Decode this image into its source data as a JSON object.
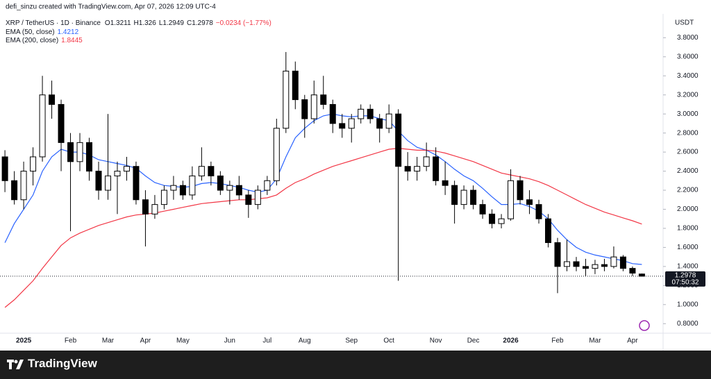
{
  "chart_data": {
    "type": "candlestick",
    "credit": "defi_sinzu created with TradingView.com, Apr 07, 2026 12:09 UTC-4",
    "title": "XRP / TetherUS · 1D · Binance",
    "ohlc_labels": [
      "O",
      "H",
      "L",
      "C"
    ],
    "change_label": "−0.0234 (−1.77%)",
    "axis_unit": "USDT",
    "countdown": "07:50:32",
    "footer": "TradingView",
    "up_color": "#ffffff",
    "down_color": "#000000",
    "wick_color": "#000000",
    "categories": [
      null,
      null,
      "2025",
      null,
      null,
      null,
      null,
      "Feb",
      null,
      null,
      null,
      "Mar",
      null,
      null,
      null,
      "Apr",
      null,
      null,
      null,
      "May",
      null,
      null,
      null,
      null,
      "Jun",
      null,
      null,
      null,
      "Jul",
      null,
      null,
      null,
      "Aug",
      null,
      null,
      null,
      null,
      "Sep",
      null,
      null,
      null,
      "Oct",
      null,
      null,
      null,
      null,
      "Nov",
      null,
      null,
      null,
      "Dec",
      null,
      null,
      null,
      "2026",
      null,
      null,
      null,
      null,
      "Feb",
      null,
      null,
      null,
      "Mar",
      null,
      null,
      null,
      "Apr",
      null
    ],
    "open": [
      2.55,
      2.3,
      2.1,
      2.4,
      2.55,
      3.2,
      3.1,
      2.7,
      2.5,
      2.7,
      2.4,
      2.2,
      2.35,
      2.4,
      2.45,
      2.1,
      1.95,
      2.05,
      2.2,
      2.25,
      2.15,
      2.35,
      2.45,
      2.35,
      2.2,
      2.25,
      2.15,
      2.05,
      2.2,
      2.3,
      2.85,
      3.45,
      3.15,
      2.95,
      3.2,
      3.1,
      2.9,
      2.85,
      2.95,
      3.05,
      2.95,
      2.85,
      3.0,
      2.45,
      2.4,
      2.45,
      2.55,
      2.3,
      2.25,
      2.05,
      2.2,
      2.05,
      1.95,
      1.85,
      1.9,
      2.3,
      2.1,
      2.05,
      1.9,
      1.65,
      1.4,
      1.45,
      1.4,
      1.38,
      1.42,
      1.4,
      1.5,
      1.38,
      1.3211
    ],
    "high": [
      2.62,
      2.4,
      2.5,
      2.65,
      3.4,
      3.35,
      3.15,
      2.8,
      2.8,
      2.75,
      2.5,
      3.0,
      2.5,
      2.55,
      2.5,
      2.2,
      2.15,
      2.25,
      2.35,
      2.3,
      2.45,
      2.65,
      2.5,
      2.4,
      2.3,
      2.35,
      2.2,
      2.25,
      2.35,
      2.95,
      3.65,
      3.55,
      3.2,
      3.35,
      3.4,
      3.15,
      3.0,
      3.0,
      3.1,
      3.1,
      3.0,
      3.1,
      3.05,
      2.6,
      2.55,
      2.7,
      2.65,
      2.5,
      2.3,
      2.25,
      2.25,
      2.1,
      2.0,
      1.95,
      2.42,
      2.35,
      2.2,
      2.1,
      1.95,
      1.7,
      1.68,
      1.5,
      1.48,
      1.47,
      1.48,
      1.61,
      1.52,
      1.4,
      1.326
    ],
    "low": [
      2.18,
      2.05,
      2.0,
      2.25,
      2.5,
      2.95,
      2.4,
      1.77,
      2.4,
      2.3,
      2.1,
      2.1,
      1.95,
      2.3,
      2.05,
      1.61,
      1.9,
      2.0,
      2.1,
      2.1,
      2.1,
      2.3,
      2.25,
      2.15,
      2.05,
      2.1,
      1.91,
      2.0,
      2.15,
      2.25,
      2.8,
      3.05,
      2.75,
      2.9,
      3.05,
      2.8,
      2.75,
      2.7,
      2.9,
      2.9,
      2.7,
      2.8,
      1.25,
      2.3,
      2.3,
      2.4,
      2.25,
      2.15,
      1.85,
      2.0,
      2.0,
      1.9,
      1.8,
      1.8,
      1.88,
      2.05,
      1.95,
      1.85,
      1.6,
      1.12,
      1.35,
      1.35,
      1.3,
      1.32,
      1.35,
      1.38,
      1.35,
      1.3,
      1.2949
    ],
    "close": [
      2.3,
      2.1,
      2.4,
      2.55,
      3.2,
      3.1,
      2.7,
      2.5,
      2.7,
      2.4,
      2.2,
      2.35,
      2.4,
      2.45,
      2.1,
      1.95,
      2.05,
      2.2,
      2.25,
      2.15,
      2.35,
      2.45,
      2.35,
      2.2,
      2.25,
      2.15,
      2.05,
      2.2,
      2.3,
      2.85,
      3.45,
      3.15,
      2.95,
      3.2,
      3.1,
      2.9,
      2.85,
      2.95,
      3.05,
      2.95,
      2.85,
      3.0,
      2.45,
      2.4,
      2.45,
      2.55,
      2.3,
      2.25,
      2.05,
      2.2,
      2.05,
      1.95,
      1.85,
      1.9,
      2.3,
      2.1,
      2.05,
      1.9,
      1.65,
      1.4,
      1.45,
      1.4,
      1.38,
      1.42,
      1.4,
      1.5,
      1.38,
      1.33,
      1.2978
    ],
    "series": [
      {
        "name": "EMA (50, close)",
        "color": "#2962ff",
        "values": [
          1.65,
          1.85,
          2.0,
          2.15,
          2.4,
          2.55,
          2.63,
          2.6,
          2.6,
          2.57,
          2.52,
          2.5,
          2.48,
          2.46,
          2.43,
          2.35,
          2.28,
          2.25,
          2.24,
          2.23,
          2.24,
          2.27,
          2.28,
          2.27,
          2.25,
          2.23,
          2.2,
          2.18,
          2.2,
          2.32,
          2.55,
          2.75,
          2.85,
          2.93,
          2.98,
          3.0,
          2.98,
          2.97,
          2.98,
          2.98,
          2.95,
          2.93,
          2.82,
          2.72,
          2.65,
          2.62,
          2.57,
          2.5,
          2.42,
          2.35,
          2.3,
          2.22,
          2.13,
          2.05,
          2.05,
          2.06,
          2.03,
          1.98,
          1.9,
          1.78,
          1.68,
          1.6,
          1.55,
          1.52,
          1.5,
          1.48,
          1.46,
          1.43,
          1.4212
        ]
      },
      {
        "name": "EMA (200, close)",
        "color": "#f23645",
        "values": [
          0.97,
          1.05,
          1.15,
          1.25,
          1.38,
          1.5,
          1.62,
          1.7,
          1.75,
          1.79,
          1.83,
          1.86,
          1.89,
          1.92,
          1.94,
          1.95,
          1.96,
          1.98,
          2.0,
          2.02,
          2.04,
          2.06,
          2.07,
          2.08,
          2.09,
          2.1,
          2.1,
          2.11,
          2.12,
          2.15,
          2.22,
          2.28,
          2.32,
          2.37,
          2.41,
          2.45,
          2.48,
          2.51,
          2.54,
          2.57,
          2.6,
          2.63,
          2.64,
          2.63,
          2.62,
          2.62,
          2.61,
          2.59,
          2.56,
          2.53,
          2.5,
          2.46,
          2.42,
          2.38,
          2.36,
          2.34,
          2.32,
          2.29,
          2.25,
          2.2,
          2.15,
          2.1,
          2.05,
          2.01,
          1.97,
          1.94,
          1.91,
          1.88,
          1.8445
        ]
      }
    ],
    "ylim": [
      0.7,
      4.05
    ],
    "yticks": [
      {
        "value": 0.8,
        "label": "0.8000"
      },
      {
        "value": 1.0,
        "label": "1.0000"
      },
      {
        "value": 1.2,
        "label": "1.2000"
      },
      {
        "value": 1.4,
        "label": "1.4000"
      },
      {
        "value": 1.6,
        "label": "1.6000"
      },
      {
        "value": 1.8,
        "label": "1.8000"
      },
      {
        "value": 2.0,
        "label": "2.0000"
      },
      {
        "value": 2.2,
        "label": "2.2000"
      },
      {
        "value": 2.4,
        "label": "2.4000"
      },
      {
        "value": 2.6,
        "label": "2.6000"
      },
      {
        "value": 2.8,
        "label": "2.8000"
      },
      {
        "value": 3.0,
        "label": "3.0000"
      },
      {
        "value": 3.2,
        "label": "3.2000"
      },
      {
        "value": 3.4,
        "label": "3.4000"
      },
      {
        "value": 3.6,
        "label": "3.6000"
      },
      {
        "value": 3.8,
        "label": "3.8000"
      }
    ],
    "grid": false
  }
}
